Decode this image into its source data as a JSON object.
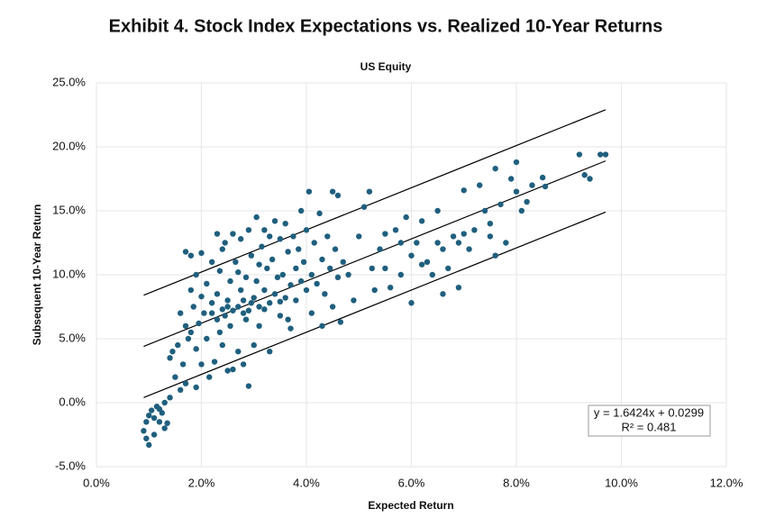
{
  "chart_data": {
    "type": "scatter",
    "title": "Exhibit 4. Stock Index Expectations vs. Realized 10-Year Returns",
    "subtitle": "US Equity",
    "x_label": "Expected Return",
    "y_label": "Subsequent 10-Year Return",
    "annotation": [
      "y = 1.6424x + 0.0299",
      "R² = 0.481"
    ],
    "xlim": [
      0,
      12
    ],
    "ylim": [
      -5,
      25
    ],
    "xticks": [
      {
        "value": 0,
        "label": "0.0%"
      },
      {
        "value": 2,
        "label": "2.0%"
      },
      {
        "value": 4,
        "label": "4.0%"
      },
      {
        "value": 6,
        "label": "6.0%"
      },
      {
        "value": 8,
        "label": "8.0%"
      },
      {
        "value": 10,
        "label": "10.0%"
      },
      {
        "value": 12,
        "label": "12.0%"
      }
    ],
    "yticks": [
      {
        "value": -5,
        "label": "-5.0%"
      },
      {
        "value": 0,
        "label": "0.0%"
      },
      {
        "value": 5,
        "label": "5.0%"
      },
      {
        "value": 10,
        "label": "10.0%"
      },
      {
        "value": 15,
        "label": "15.0%"
      },
      {
        "value": 20,
        "label": "20.0%"
      },
      {
        "value": 25,
        "label": "25.0%"
      }
    ],
    "grid": true,
    "trend_color": "#000000",
    "trend_lines": [
      {
        "x": [
          0.9,
          9.7
        ],
        "values": [
          8.4,
          22.9
        ]
      },
      {
        "x": [
          0.9,
          9.7
        ],
        "values": [
          4.4,
          18.9
        ]
      },
      {
        "x": [
          0.9,
          9.7
        ],
        "values": [
          0.4,
          14.9
        ]
      }
    ],
    "series": [
      {
        "color": "#1f5f7e",
        "x": [
          0.9,
          0.95,
          1.0,
          1.0,
          1.05,
          1.1,
          1.1,
          1.15,
          1.2,
          1.25,
          1.3,
          1.3,
          1.35,
          1.4,
          0.95,
          1.2,
          1.4,
          1.45,
          1.5,
          1.55,
          1.6,
          1.6,
          1.65,
          1.7,
          1.7,
          1.75,
          1.8,
          1.8,
          1.85,
          1.9,
          1.9,
          1.95,
          2.0,
          2.0,
          1.9,
          2.0,
          1.8,
          1.7,
          2.05,
          2.1,
          2.1,
          2.15,
          2.2,
          2.2,
          2.25,
          2.3,
          2.3,
          2.35,
          2.4,
          2.4,
          2.45,
          2.5,
          2.5,
          2.55,
          2.55,
          2.6,
          2.6,
          2.65,
          2.7,
          2.7,
          2.75,
          2.75,
          2.8,
          2.8,
          2.85,
          2.85,
          2.9,
          2.9,
          2.95,
          2.95,
          3.0,
          3.0,
          2.3,
          2.4,
          2.6,
          2.7,
          2.5,
          2.2,
          2.45,
          2.35,
          2.9,
          2.8,
          3.05,
          3.05,
          3.1,
          3.1,
          3.15,
          3.2,
          3.2,
          3.25,
          3.3,
          3.3,
          3.35,
          3.4,
          3.4,
          3.45,
          3.5,
          3.5,
          3.55,
          3.6,
          3.6,
          3.65,
          3.7,
          3.7,
          3.75,
          3.8,
          3.8,
          3.85,
          3.9,
          3.9,
          3.95,
          4.0,
          4.0,
          3.2,
          3.5,
          3.3,
          3.65,
          3.1,
          4.05,
          4.1,
          4.1,
          4.15,
          4.2,
          4.25,
          4.3,
          4.35,
          4.4,
          4.45,
          4.5,
          4.5,
          4.55,
          4.6,
          4.6,
          4.65,
          4.7,
          4.8,
          4.9,
          5.0,
          5.1,
          5.2,
          5.25,
          4.3,
          5.3,
          5.4,
          5.5,
          5.6,
          5.7,
          5.8,
          5.9,
          6.0,
          6.0,
          6.1,
          6.2,
          6.3,
          6.4,
          6.5,
          6.6,
          6.6,
          6.7,
          6.8,
          6.9,
          6.9,
          7.0,
          7.0,
          6.2,
          6.5,
          5.5,
          5.8,
          7.1,
          7.2,
          7.3,
          7.4,
          7.5,
          7.6,
          7.7,
          7.8,
          7.9,
          8.0,
          8.0,
          8.1,
          8.2,
          8.3,
          8.5,
          8.55,
          9.2,
          9.3,
          9.4,
          9.6,
          9.7,
          7.6,
          7.5
        ],
        "values": [
          -2.2,
          -2.8,
          -3.3,
          -1.0,
          -0.6,
          -2.5,
          -1.2,
          -0.3,
          -1.5,
          -0.8,
          -2.0,
          0.0,
          -1.6,
          0.4,
          -1.5,
          -0.5,
          3.5,
          4.0,
          2.0,
          4.5,
          1.0,
          7.0,
          3.0,
          11.8,
          6.0,
          5.0,
          8.8,
          11.5,
          7.5,
          4.2,
          10.0,
          6.2,
          11.7,
          8.3,
          1.2,
          3.0,
          5.5,
          1.5,
          7.0,
          9.3,
          5.0,
          2.0,
          7.8,
          11.0,
          3.2,
          8.5,
          6.5,
          10.3,
          7.3,
          4.5,
          12.5,
          8.0,
          2.5,
          9.5,
          6.0,
          7.2,
          13.2,
          11.0,
          7.5,
          4.0,
          8.8,
          12.8,
          7.0,
          3.0,
          9.8,
          6.5,
          1.3,
          13.5,
          7.8,
          11.5,
          8.2,
          4.5,
          13.2,
          12.0,
          2.6,
          10.2,
          7.5,
          7.0,
          6.8,
          5.5,
          7.2,
          8.0,
          14.5,
          9.5,
          7.5,
          6.0,
          12.2,
          8.8,
          13.5,
          10.5,
          7.8,
          4.0,
          11.2,
          14.2,
          8.5,
          9.8,
          12.8,
          6.8,
          10.0,
          14.0,
          8.2,
          11.8,
          9.2,
          5.8,
          13.0,
          10.5,
          8.0,
          12.0,
          9.5,
          15.0,
          11.0,
          8.8,
          13.5,
          7.3,
          7.9,
          13.0,
          6.5,
          10.8,
          16.5,
          10.0,
          7.0,
          12.5,
          9.3,
          14.8,
          11.2,
          8.5,
          13.0,
          10.5,
          16.5,
          7.5,
          12.0,
          9.8,
          16.2,
          6.3,
          11.0,
          10.0,
          8.0,
          13.0,
          15.3,
          16.5,
          10.5,
          6.0,
          8.8,
          12.0,
          10.5,
          9.0,
          13.5,
          10.0,
          14.5,
          11.5,
          7.8,
          12.5,
          14.2,
          11.0,
          10.0,
          15.0,
          8.5,
          12.0,
          10.5,
          13.0,
          9.0,
          12.5,
          16.6,
          13.2,
          10.8,
          12.5,
          13.2,
          12.5,
          12.0,
          13.5,
          17.0,
          15.0,
          14.0,
          18.3,
          15.5,
          12.5,
          17.5,
          18.8,
          16.5,
          15.0,
          15.7,
          17.0,
          17.6,
          16.9,
          19.4,
          17.8,
          17.5,
          19.4,
          19.4,
          11.5,
          13.0
        ]
      }
    ]
  }
}
